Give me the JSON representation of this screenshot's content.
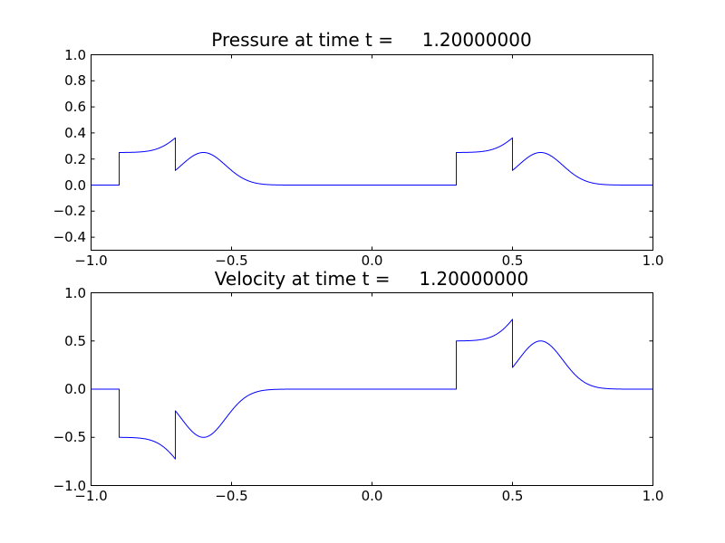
{
  "figure": {
    "background": "#ffffff",
    "frame_color": "#000000",
    "text_color": "#000000"
  },
  "chart_data": [
    {
      "type": "line",
      "title": "Pressure at time t =     1.20000000",
      "xlim": [
        -1.0,
        1.0
      ],
      "ylim": [
        -0.5,
        1.0
      ],
      "grid": false,
      "legend": "none",
      "xticks": [
        {
          "value": -1.0,
          "label": "−1.0"
        },
        {
          "value": -0.5,
          "label": "−0.5"
        },
        {
          "value": 0.0,
          "label": "0.0"
        },
        {
          "value": 0.5,
          "label": "0.5"
        },
        {
          "value": 1.0,
          "label": "1.0"
        }
      ],
      "yticks": [
        {
          "value": 1.0,
          "label": "1.0"
        },
        {
          "value": 0.8,
          "label": "0.8"
        },
        {
          "value": 0.6,
          "label": "0.6"
        },
        {
          "value": 0.4,
          "label": "0.4"
        },
        {
          "value": 0.2,
          "label": "0.2"
        },
        {
          "value": 0.0,
          "label": "0.0"
        },
        {
          "value": -0.2,
          "label": "−0.2"
        },
        {
          "value": -0.4,
          "label": "−0.4"
        }
      ],
      "series": [
        {
          "name": "pressure",
          "color": "#0000ff",
          "components": [
            {
              "type": "step_pulse",
              "from": -0.9,
              "to": -0.7,
              "amplitude": 0.25
            },
            {
              "type": "gaussian",
              "center": -0.6,
              "amplitude": 0.25,
              "beta": 80
            },
            {
              "type": "step_pulse",
              "from": 0.3,
              "to": 0.5,
              "amplitude": 0.25
            },
            {
              "type": "gaussian",
              "center": 0.6,
              "amplitude": 0.25,
              "beta": 80
            }
          ],
          "key_points": [
            {
              "x": -1.0,
              "y": 0.0
            },
            {
              "x": -0.9,
              "y": 0.0,
              "jump_to": 0.25
            },
            {
              "x": -0.7,
              "y": 0.3623,
              "jump_to": 0.1123
            },
            {
              "x": -0.6,
              "y": 0.25
            },
            {
              "x": -0.38,
              "y": 0.0
            },
            {
              "x": 0.3,
              "y": 0.0,
              "jump_to": 0.25
            },
            {
              "x": 0.5,
              "y": 0.3623,
              "jump_to": 0.1123
            },
            {
              "x": 0.6,
              "y": 0.25
            },
            {
              "x": 0.82,
              "y": 0.0
            },
            {
              "x": 1.0,
              "y": 0.0
            }
          ]
        }
      ]
    },
    {
      "type": "line",
      "title": "Velocity at time t =     1.20000000",
      "xlim": [
        -1.0,
        1.0
      ],
      "ylim": [
        -1.0,
        1.0
      ],
      "grid": false,
      "legend": "none",
      "xticks": [
        {
          "value": -1.0,
          "label": "−1.0"
        },
        {
          "value": -0.5,
          "label": "−0.5"
        },
        {
          "value": 0.0,
          "label": "0.0"
        },
        {
          "value": 0.5,
          "label": "0.5"
        },
        {
          "value": 1.0,
          "label": "1.0"
        }
      ],
      "yticks": [
        {
          "value": 1.0,
          "label": "1.0"
        },
        {
          "value": 0.5,
          "label": "0.5"
        },
        {
          "value": 0.0,
          "label": "0.0"
        },
        {
          "value": -0.5,
          "label": "−0.5"
        },
        {
          "value": -1.0,
          "label": "−1.0"
        }
      ],
      "series": [
        {
          "name": "velocity",
          "color": "#0000ff",
          "components": [
            {
              "type": "step_pulse",
              "from": -0.9,
              "to": -0.7,
              "amplitude": -0.5
            },
            {
              "type": "gaussian",
              "center": -0.6,
              "amplitude": -0.5,
              "beta": 80
            },
            {
              "type": "step_pulse",
              "from": 0.3,
              "to": 0.5,
              "amplitude": 0.5
            },
            {
              "type": "gaussian",
              "center": 0.6,
              "amplitude": 0.5,
              "beta": 80
            }
          ],
          "key_points": [
            {
              "x": -1.0,
              "y": 0.0
            },
            {
              "x": -0.9,
              "y": 0.0,
              "jump_to": -0.5
            },
            {
              "x": -0.7,
              "y": -0.7247,
              "jump_to": -0.2247
            },
            {
              "x": -0.6,
              "y": -0.5
            },
            {
              "x": -0.38,
              "y": 0.0
            },
            {
              "x": 0.3,
              "y": 0.0,
              "jump_to": 0.5
            },
            {
              "x": 0.5,
              "y": 0.7247,
              "jump_to": 0.2247
            },
            {
              "x": 0.6,
              "y": 0.5
            },
            {
              "x": 0.82,
              "y": 0.0
            },
            {
              "x": 1.0,
              "y": 0.0
            }
          ]
        }
      ]
    }
  ]
}
